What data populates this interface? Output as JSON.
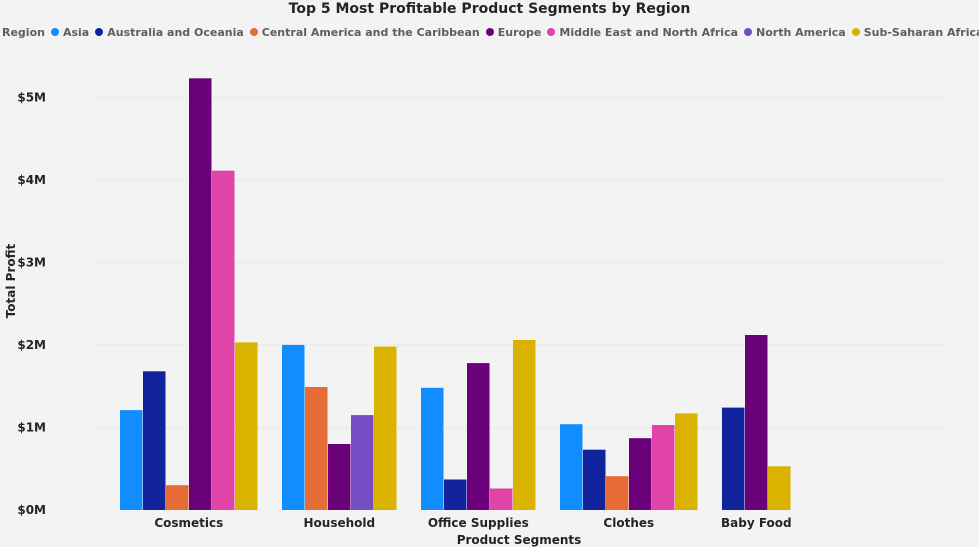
{
  "chart_data": {
    "type": "bar",
    "title": "Top 5 Most Profitable Product Segments by Region",
    "xlabel": "Product Segments",
    "ylabel": "Total Profit",
    "legend_title": "Region",
    "legend_position": "top-left",
    "grid": true,
    "ylim": [
      0,
      5500000
    ],
    "yticks": [
      {
        "value": 0,
        "label": "$0M"
      },
      {
        "value": 1000000,
        "label": "$1M"
      },
      {
        "value": 2000000,
        "label": "$2M"
      },
      {
        "value": 3000000,
        "label": "$3M"
      },
      {
        "value": 4000000,
        "label": "$4M"
      },
      {
        "value": 5000000,
        "label": "$5M"
      }
    ],
    "categories": [
      "Cosmetics",
      "Household",
      "Office Supplies",
      "Clothes",
      "Baby Food"
    ],
    "series": [
      {
        "name": "Asia",
        "color": "#118dff",
        "values": [
          1210000,
          2000000,
          1480000,
          1040000,
          null
        ]
      },
      {
        "name": "Australia and Oceania",
        "color": "#12239e",
        "values": [
          1680000,
          null,
          370000,
          730000,
          1240000
        ]
      },
      {
        "name": "Central America and the Caribbean",
        "color": "#e66c37",
        "values": [
          300000,
          1490000,
          null,
          410000,
          null
        ]
      },
      {
        "name": "Europe",
        "color": "#6b007b",
        "values": [
          5230000,
          800000,
          1780000,
          870000,
          2120000
        ]
      },
      {
        "name": "Middle East and North Africa",
        "color": "#e044a7",
        "values": [
          4110000,
          null,
          260000,
          1030000,
          null
        ]
      },
      {
        "name": "North America",
        "color": "#744ec2",
        "values": [
          null,
          1150000,
          null,
          null,
          null
        ]
      },
      {
        "name": "Sub-Saharan Africa",
        "color": "#d9b300",
        "values": [
          2030000,
          1980000,
          2060000,
          1170000,
          530000
        ]
      }
    ]
  }
}
